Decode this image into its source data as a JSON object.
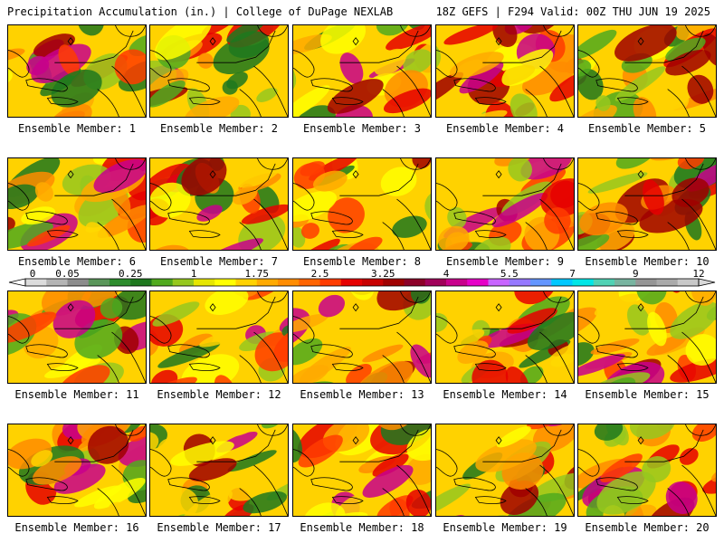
{
  "header": {
    "left": "Precipitation Accumulation (in.) | College of DuPage NEXLAB",
    "right": "18Z GEFS | F294 Valid: 00Z THU JUN 19 2025"
  },
  "colorbar": {
    "labels": [
      "0",
      "0.05",
      "0.25",
      "1",
      "1.75",
      "2.5",
      "3.25",
      "4",
      "5.5",
      "7",
      "9",
      "12"
    ],
    "colors": [
      "#dcdcdc",
      "#b4b4b4",
      "#8c8c8c",
      "#5a965a",
      "#2d8c2d",
      "#1e781e",
      "#50aa1e",
      "#96c81e",
      "#e6e600",
      "#ffff00",
      "#ffd200",
      "#ffaa00",
      "#ff8c00",
      "#ff6400",
      "#ff3c00",
      "#e60000",
      "#c80000",
      "#a00000",
      "#8c0028",
      "#a0005a",
      "#c8008c",
      "#e600c8",
      "#c864ff",
      "#9678ff",
      "#6496ff",
      "#00c8ff",
      "#00e6e6",
      "#50d2b4",
      "#78b4a0",
      "#969696",
      "#aaaaaa",
      "#c8c8c8"
    ]
  },
  "members": [
    {
      "label": "Ensemble Member: 1"
    },
    {
      "label": "Ensemble Member: 2"
    },
    {
      "label": "Ensemble Member: 3"
    },
    {
      "label": "Ensemble Member: 4"
    },
    {
      "label": "Ensemble Member: 5"
    },
    {
      "label": "Ensemble Member: 6"
    },
    {
      "label": "Ensemble Member: 7"
    },
    {
      "label": "Ensemble Member: 8"
    },
    {
      "label": "Ensemble Member: 9"
    },
    {
      "label": "Ensemble Member: 10"
    },
    {
      "label": "Ensemble Member: 11"
    },
    {
      "label": "Ensemble Member: 12"
    },
    {
      "label": "Ensemble Member: 13"
    },
    {
      "label": "Ensemble Member: 14"
    },
    {
      "label": "Ensemble Member: 15"
    },
    {
      "label": "Ensemble Member: 16"
    },
    {
      "label": "Ensemble Member: 17"
    },
    {
      "label": "Ensemble Member: 18"
    },
    {
      "label": "Ensemble Member: 19"
    },
    {
      "label": "Ensemble Member: 20"
    }
  ]
}
